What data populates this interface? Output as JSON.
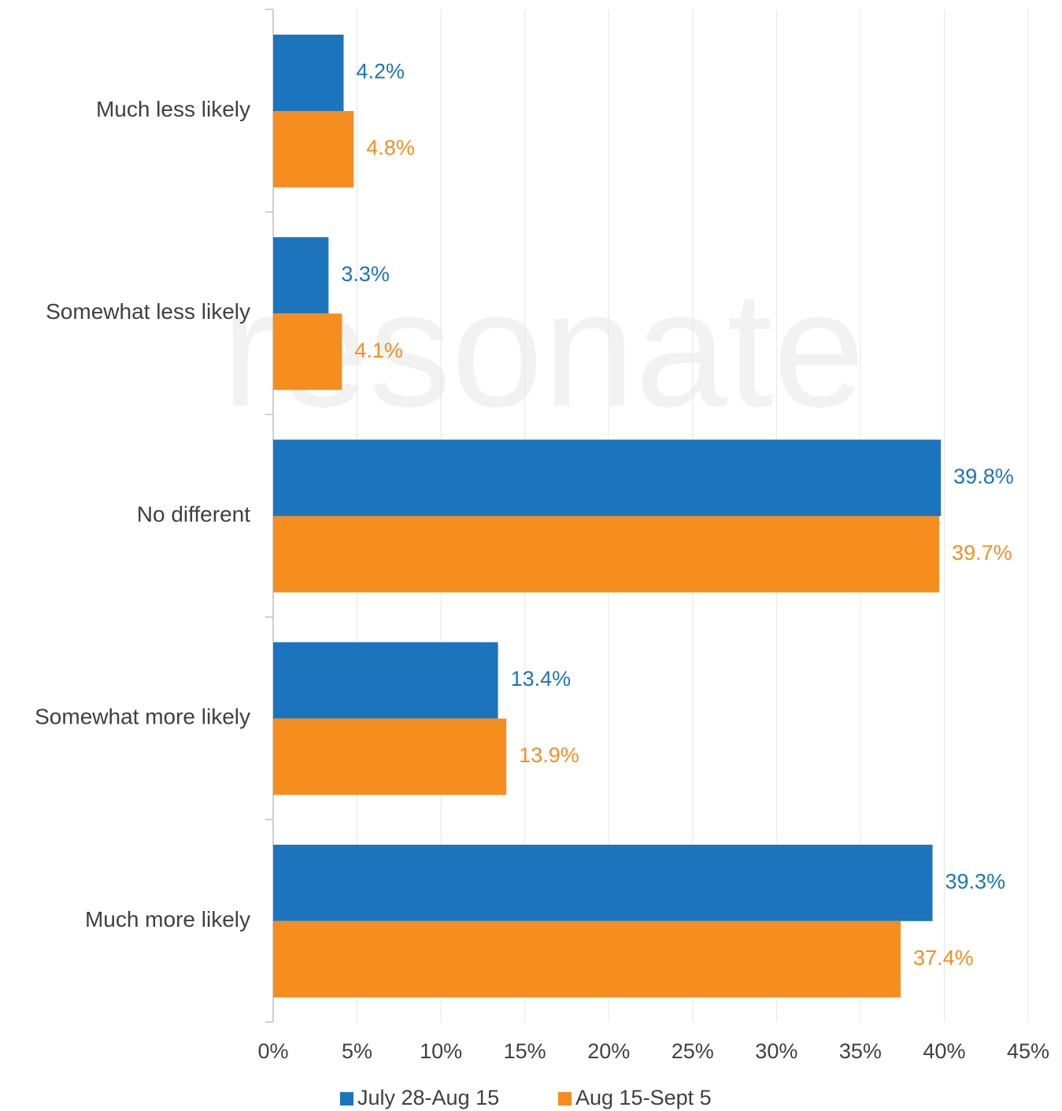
{
  "chart_data": {
    "type": "bar",
    "orientation": "horizontal",
    "watermark": "resonate",
    "categories": [
      "Much less likely",
      "Somewhat less likely",
      "No different",
      "Somewhat more likely",
      "Much more likely"
    ],
    "series": [
      {
        "name": "July 28-Aug 15",
        "color": "#1c75bc",
        "values": [
          4.2,
          3.3,
          39.8,
          13.4,
          39.3
        ],
        "value_labels": [
          "4.2%",
          "3.3%",
          "39.8%",
          "13.4%",
          "39.3%"
        ]
      },
      {
        "name": "Aug 15-Sept 5",
        "color": "#f58d1f",
        "values": [
          4.8,
          4.1,
          39.7,
          13.9,
          37.4
        ],
        "value_labels": [
          "4.8%",
          "4.1%",
          "39.7%",
          "13.9%",
          "37.4%"
        ]
      }
    ],
    "xlim": [
      0,
      45
    ],
    "xticks": [
      {
        "value": 0,
        "label": "0%"
      },
      {
        "value": 5,
        "label": "5%"
      },
      {
        "value": 10,
        "label": "10%"
      },
      {
        "value": 15,
        "label": "15%"
      },
      {
        "value": 20,
        "label": "20%"
      },
      {
        "value": 25,
        "label": "25%"
      },
      {
        "value": 30,
        "label": "30%"
      },
      {
        "value": 35,
        "label": "35%"
      },
      {
        "value": 40,
        "label": "40%"
      },
      {
        "value": 45,
        "label": "45%"
      }
    ],
    "grid": true,
    "legend": "bottom"
  }
}
